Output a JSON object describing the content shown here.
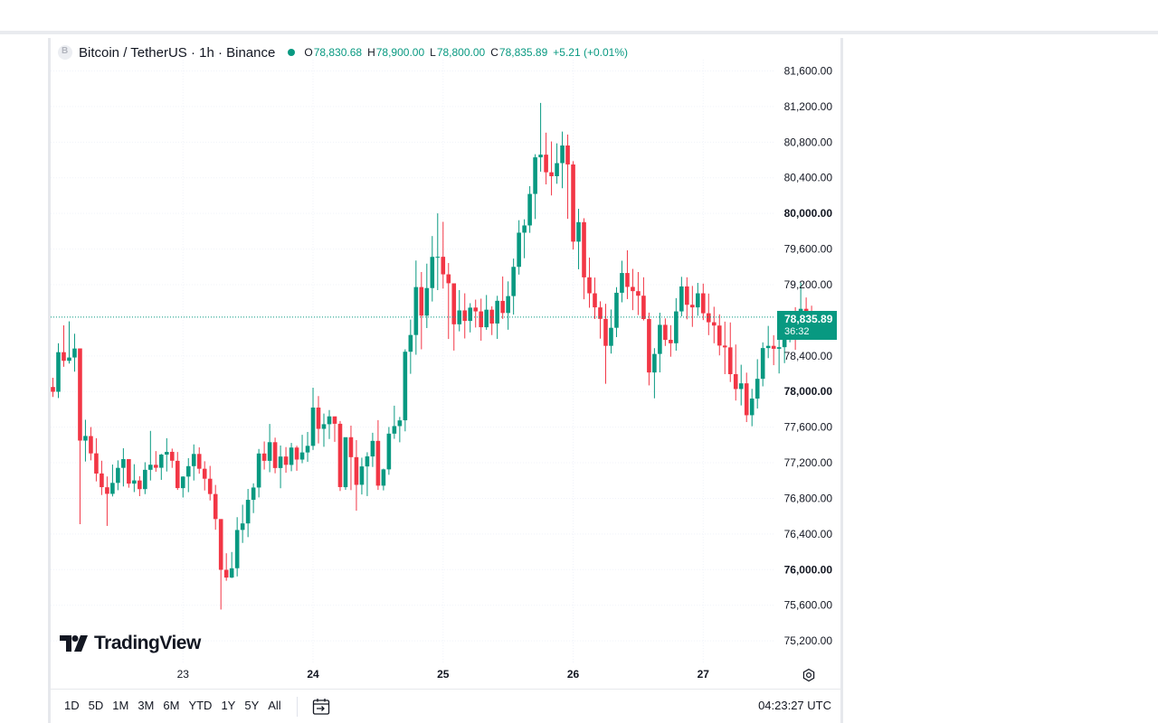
{
  "legend": {
    "symbol": "Bitcoin / TetherUS · 1h · Binance",
    "ohlc": [
      {
        "k": "O",
        "v": "78,830.68"
      },
      {
        "k": "H",
        "v": "78,900.00"
      },
      {
        "k": "L",
        "v": "78,800.00"
      },
      {
        "k": "C",
        "v": "78,835.89"
      }
    ],
    "change": "+5.21 (+0.01%)"
  },
  "last_price": {
    "price": "78,835.89",
    "countdown": "36:32"
  },
  "brand": "TradingView",
  "periods": [
    "1D",
    "5D",
    "1M",
    "3M",
    "6M",
    "YTD",
    "1Y",
    "5Y",
    "All"
  ],
  "clock": "04:23:27 UTC",
  "colors": {
    "up": "#089981",
    "down": "#f23645",
    "grid": "#f0f3fa",
    "text": "#131722"
  },
  "icons": {
    "calendar": "calendar-goto-icon",
    "settings": "chart-settings-icon",
    "logo": "tradingview-logo-icon"
  },
  "chart_data": {
    "type": "candlestick",
    "interval": "1h",
    "y_ticks": [
      "81,600.00",
      "81,200.00",
      "80,800.00",
      "80,400.00",
      "80,000.00",
      "79,600.00",
      "79,200.00",
      "78,400.00",
      "78,000.00",
      "77,600.00",
      "77,200.00",
      "76,800.00",
      "76,400.00",
      "76,000.00",
      "75,600.00",
      "75,200.00"
    ],
    "y_values": [
      81600,
      81200,
      80800,
      80400,
      80000,
      79600,
      79200,
      78400,
      78000,
      77600,
      77200,
      76800,
      76400,
      76000,
      75600,
      75200
    ],
    "bold_ticks": [
      "80,000.00",
      "78,000.00",
      "76,000.00"
    ],
    "x_ticks": [
      {
        "label": "23",
        "bar": 24,
        "bold": false
      },
      {
        "label": "24",
        "bar": 48,
        "bold": true
      },
      {
        "label": "25",
        "bar": 72,
        "bold": true
      },
      {
        "label": "26",
        "bar": 96,
        "bold": true
      },
      {
        "label": "27",
        "bar": 120,
        "bold": true
      }
    ],
    "last_price": 78835.89,
    "candles": [
      [
        78051,
        78154,
        77939,
        77997
      ],
      [
        77997,
        78542,
        77927,
        78442
      ],
      [
        78442,
        78743,
        78278,
        78345
      ],
      [
        78345,
        78788,
        78314,
        78382
      ],
      [
        78382,
        78649,
        78223,
        78483
      ],
      [
        78484,
        78483,
        76510,
        77449
      ],
      [
        77449,
        77683,
        77214,
        77501
      ],
      [
        77500,
        77601,
        77227,
        77305
      ],
      [
        77306,
        77476,
        76991,
        77079
      ],
      [
        77080,
        77223,
        76838,
        76926
      ],
      [
        76925,
        77046,
        76491,
        76851
      ],
      [
        76851,
        77180,
        76822,
        76974
      ],
      [
        76974,
        77227,
        76892,
        77143
      ],
      [
        77143,
        77363,
        76934,
        77241
      ],
      [
        77241,
        77213,
        76920,
        76966
      ],
      [
        76966,
        77184,
        76871,
        77002
      ],
      [
        77001,
        77049,
        76825,
        76904
      ],
      [
        76904,
        77206,
        76848,
        77121
      ],
      [
        77121,
        77558,
        77001,
        77178
      ],
      [
        77177,
        77331,
        77099,
        77144
      ],
      [
        77144,
        77300,
        77008,
        77292
      ],
      [
        77292,
        77476,
        77102,
        77322
      ],
      [
        77323,
        77359,
        77143,
        77223
      ],
      [
        77222,
        77321,
        76895,
        76916
      ],
      [
        76915,
        77049,
        76810,
        77045
      ],
      [
        77045,
        77252,
        76870,
        77162
      ],
      [
        77162,
        77406,
        77001,
        77299
      ],
      [
        77299,
        77373,
        77077,
        77133
      ],
      [
        77133,
        77217,
        76889,
        77021
      ],
      [
        77021,
        77165,
        76777,
        76849
      ],
      [
        76849,
        76951,
        76448,
        76568
      ],
      [
        76568,
        76567,
        75552,
        75998
      ],
      [
        75998,
        76184,
        75875,
        75911
      ],
      [
        75911,
        76198,
        75905,
        76015
      ],
      [
        76016,
        76589,
        75924,
        76445
      ],
      [
        76446,
        76729,
        76300,
        76519
      ],
      [
        76519,
        76906,
        76365,
        76784
      ],
      [
        76784,
        76969,
        76635,
        76922
      ],
      [
        76922,
        77355,
        76811,
        77304
      ],
      [
        77304,
        77439,
        77124,
        77222
      ],
      [
        77222,
        77636,
        77094,
        77431
      ],
      [
        77431,
        77482,
        77082,
        77141
      ],
      [
        77141,
        77394,
        76914,
        77270
      ],
      [
        77270,
        77376,
        77088,
        77177
      ],
      [
        77176,
        77423,
        77105,
        77371
      ],
      [
        77371,
        77391,
        77110,
        77236
      ],
      [
        77236,
        77514,
        77195,
        77316
      ],
      [
        77316,
        77546,
        77210,
        77390
      ],
      [
        77390,
        78043,
        77344,
        77820
      ],
      [
        77820,
        77949,
        77417,
        77581
      ],
      [
        77581,
        77753,
        77380,
        77633
      ],
      [
        77633,
        77792,
        77467,
        77721
      ],
      [
        77721,
        77688,
        77435,
        77638
      ],
      [
        77638,
        77669,
        76883,
        76927
      ],
      [
        76926,
        77481,
        76896,
        77487
      ],
      [
        77487,
        77617,
        76893,
        77263
      ],
      [
        77263,
        77455,
        76662,
        76952
      ],
      [
        76953,
        77257,
        76844,
        77159
      ],
      [
        77159,
        77318,
        76826,
        77272
      ],
      [
        77271,
        77537,
        77153,
        77446
      ],
      [
        77446,
        77679,
        76895,
        76943
      ],
      [
        76943,
        77134,
        76890,
        77126
      ],
      [
        77126,
        77602,
        77065,
        77527
      ],
      [
        77527,
        77841,
        77469,
        77612
      ],
      [
        77612,
        77715,
        77430,
        77676
      ],
      [
        77677,
        78474,
        77553,
        78447
      ],
      [
        78447,
        78808,
        78199,
        78635
      ],
      [
        78635,
        79471,
        78413,
        79173
      ],
      [
        79173,
        79342,
        78474,
        78852
      ],
      [
        78852,
        79436,
        78713,
        79162
      ],
      [
        79162,
        79746,
        79011,
        79512
      ],
      [
        79512,
        80001,
        79139,
        79513
      ],
      [
        79513,
        79906,
        79156,
        79316
      ],
      [
        79316,
        79443,
        78590,
        79216
      ],
      [
        79215,
        79182,
        78460,
        78755
      ],
      [
        78755,
        79139,
        78676,
        78911
      ],
      [
        78911,
        79103,
        78596,
        78793
      ],
      [
        78793,
        78992,
        78664,
        78942
      ],
      [
        78943,
        79032,
        78719,
        78900
      ],
      [
        78900,
        79043,
        78571,
        78722
      ],
      [
        78722,
        79084,
        78693,
        78919
      ],
      [
        78919,
        78957,
        78634,
        78763
      ],
      [
        78764,
        79075,
        78591,
        79019
      ],
      [
        79018,
        79292,
        78816,
        78882
      ],
      [
        78882,
        79237,
        78694,
        79072
      ],
      [
        79072,
        79493,
        78864,
        79400
      ],
      [
        79400,
        79924,
        79313,
        79784
      ],
      [
        79784,
        79934,
        79497,
        79865
      ],
      [
        79865,
        80306,
        79782,
        80219
      ],
      [
        80219,
        80665,
        79937,
        80630
      ],
      [
        80630,
        81241,
        80469,
        80660
      ],
      [
        80660,
        80907,
        80326,
        80462
      ],
      [
        80462,
        80808,
        80202,
        80418
      ],
      [
        80418,
        80787,
        80333,
        80565
      ],
      [
        80565,
        80919,
        80283,
        80763
      ],
      [
        80763,
        80886,
        79939,
        80550
      ],
      [
        80550,
        80587,
        79595,
        79683
      ],
      [
        79683,
        80052,
        79373,
        79902
      ],
      [
        79902,
        79946,
        79036,
        79282
      ],
      [
        79282,
        79504,
        78941,
        79103
      ],
      [
        79103,
        79280,
        78814,
        78945
      ],
      [
        78945,
        79013,
        78594,
        78816
      ],
      [
        78816,
        78985,
        78087,
        78513
      ],
      [
        78513,
        78921,
        78426,
        78716
      ],
      [
        78716,
        79172,
        78611,
        79109
      ],
      [
        79109,
        79469,
        79002,
        79331
      ],
      [
        79331,
        79586,
        79038,
        79175
      ],
      [
        79175,
        79377,
        78914,
        79127
      ],
      [
        79127,
        79342,
        78859,
        79076
      ],
      [
        79076,
        79283,
        78798,
        78814
      ],
      [
        78814,
        78886,
        78069,
        78214
      ],
      [
        78214,
        78487,
        77924,
        78422
      ],
      [
        78422,
        78885,
        78215,
        78749
      ],
      [
        78749,
        78821,
        78512,
        78580
      ],
      [
        78581,
        78745,
        78391,
        78542
      ],
      [
        78542,
        79049,
        78459,
        78900
      ],
      [
        78900,
        79288,
        78845,
        79180
      ],
      [
        79180,
        79283,
        78811,
        78974
      ],
      [
        78974,
        79186,
        78726,
        78945
      ],
      [
        78945,
        79220,
        78850,
        79103
      ],
      [
        79103,
        79212,
        78803,
        78879
      ],
      [
        78879,
        79100,
        78633,
        78778
      ],
      [
        78778,
        78952,
        78542,
        78741
      ],
      [
        78741,
        78867,
        78406,
        78516
      ],
      [
        78516,
        78785,
        78195,
        78496
      ],
      [
        78496,
        78776,
        78107,
        78195
      ],
      [
        78195,
        78528,
        77899,
        78028
      ],
      [
        78028,
        78301,
        77844,
        78092
      ],
      [
        78092,
        78212,
        77657,
        77734
      ],
      [
        77734,
        78030,
        77610,
        77921
      ],
      [
        77921,
        78363,
        77809,
        78143
      ],
      [
        78143,
        78552,
        78058,
        78488
      ],
      [
        78488,
        78737,
        78375,
        78513
      ],
      [
        78513,
        78632,
        78296,
        78480
      ],
      [
        78480,
        78699,
        78203,
        78498
      ],
      [
        78498,
        78729,
        78319,
        78634
      ],
      [
        78634,
        78904,
        78553,
        78725
      ],
      [
        78725,
        78947,
        78468,
        78720
      ],
      [
        78720,
        79223,
        78651,
        78929
      ],
      [
        78929,
        79056,
        78725,
        78871
      ],
      [
        78871,
        78964,
        78717,
        78750
      ],
      [
        78750,
        78867,
        78624,
        78830
      ],
      [
        78830,
        78900,
        78800,
        78836
      ]
    ]
  }
}
